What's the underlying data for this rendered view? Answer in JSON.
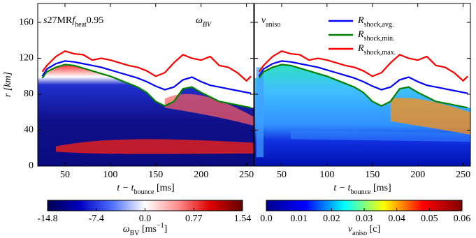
{
  "chart_data": {
    "type": "line",
    "x": [
      25,
      30,
      40,
      50,
      60,
      70,
      80,
      90,
      100,
      110,
      120,
      130,
      140,
      150,
      160,
      170,
      180,
      190,
      200,
      210,
      220,
      230,
      240,
      250,
      255
    ],
    "series": [
      {
        "name": "R",
        "name_sub": "shock,avg.",
        "color": "#0000ff",
        "values": [
          100,
          108,
          114,
          117,
          116,
          114,
          112,
          110,
          107,
          104,
          101,
          98,
          94,
          89,
          85,
          88,
          96,
          99,
          94,
          90,
          88,
          86,
          84,
          82,
          81
        ]
      },
      {
        "name": "R",
        "name_sub": "shock,min.",
        "color": "#008000",
        "values": [
          98,
          105,
          110,
          113,
          112,
          109,
          106,
          103,
          100,
          96,
          92,
          88,
          82,
          72,
          67,
          72,
          86,
          88,
          82,
          77,
          72,
          70,
          68,
          66,
          65
        ]
      },
      {
        "name": "R",
        "name_sub": "shock,max.",
        "color": "#ff0000",
        "values": [
          105,
          112,
          122,
          128,
          125,
          124,
          118,
          120,
          118,
          115,
          112,
          110,
          106,
          100,
          104,
          115,
          124,
          120,
          118,
          122,
          112,
          110,
          104,
          95,
          100
        ]
      }
    ],
    "xlabel": [
      "t − t",
      "bounce",
      " [ms]"
    ],
    "ylabel": "r [km]",
    "xlim": [
      20,
      258
    ],
    "xticks": [
      50,
      100,
      150,
      200,
      250
    ],
    "ylim": [
      0,
      181
    ],
    "yticks": [
      0,
      40,
      80,
      120,
      160
    ],
    "panels": [
      {
        "annotation": [
          "s",
          "27MR",
          "f",
          "heat",
          "0.95"
        ],
        "quantity": [
          "ω",
          "BV"
        ],
        "colorbar": {
          "clim": [
            -14.8,
            1.54
          ],
          "center": 0,
          "colors": [
            "#000050",
            "#0000c0",
            "#5070ff",
            "#ffffff",
            "#ff9090",
            "#e00000",
            "#600000"
          ],
          "ticks": [
            -14.8,
            -7.4,
            {
              "value": 0,
              "label": "0.0"
            },
            0.77,
            1.54
          ],
          "label": [
            "ω",
            "BV",
            " [ms",
            "−1",
            "]"
          ]
        }
      },
      {
        "quantity": [
          "v",
          "aniso"
        ],
        "colorbar": {
          "clim": [
            0,
            0.06
          ],
          "colors": [
            "#00008f",
            "#0000ff",
            "#00ffff",
            "#ffff00",
            "#ff0000",
            "#800000"
          ],
          "ticks": [
            {
              "value": 0,
              "label": "0.0"
            },
            0.01,
            0.02,
            0.03,
            0.04,
            0.05,
            0.06
          ],
          "label": [
            "v",
            "aniso",
            " [c]"
          ]
        }
      }
    ]
  }
}
